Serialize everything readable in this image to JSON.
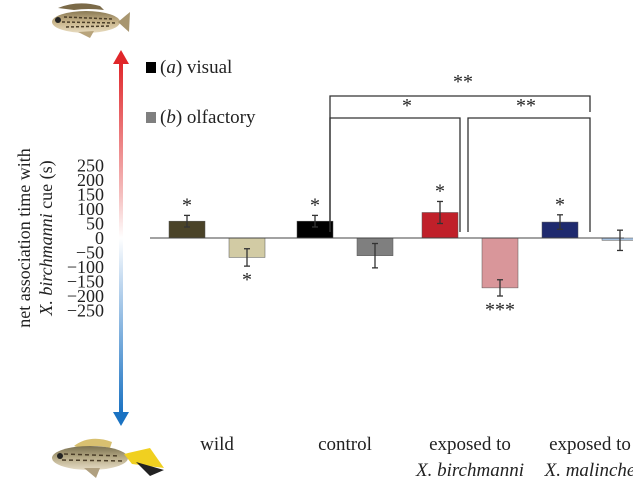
{
  "chart_data": {
    "type": "bar",
    "ylabel_line1": "net association time with",
    "ylabel_line2_italic": "X. birchmanni",
    "ylabel_line2_rest": " cue (s)",
    "ylim": [
      -250,
      250
    ],
    "yticks": [
      250,
      200,
      150,
      100,
      50,
      0,
      -50,
      -100,
      -150,
      -200,
      -250
    ],
    "categories": [
      {
        "line1": "wild",
        "line2": ""
      },
      {
        "line1": "control",
        "line2": ""
      },
      {
        "line1": "exposed to",
        "line2": "X. birchmanni"
      },
      {
        "line1": "exposed to",
        "line2": "X. malinche"
      }
    ],
    "legend": [
      {
        "letter": "a",
        "label": " visual"
      },
      {
        "letter": "b",
        "label": " olfactory"
      }
    ],
    "series": [
      {
        "name": "(a) visual",
        "values": [
          58,
          58,
          88,
          55
        ],
        "errors": [
          20,
          20,
          38,
          25
        ],
        "colors": [
          "#4a4328",
          "#000000",
          "#c0202a",
          "#1f2a6e"
        ],
        "annotations": [
          "*",
          "*",
          "*",
          "*"
        ]
      },
      {
        "name": "(b) olfactory",
        "values": [
          -67,
          -61,
          -172,
          -8
        ],
        "errors": [
          30,
          42,
          28,
          35
        ],
        "colors": [
          "#d2cba4",
          "#7f7f7f",
          "#d9969a",
          "#a6c1df"
        ],
        "annotations": [
          "*",
          "",
          "***",
          ""
        ]
      }
    ],
    "brackets": [
      {
        "label": "*",
        "from": "visual exposed to X. birchmanni",
        "to": "olfactory control"
      },
      {
        "label": "**",
        "from": "olfactory exposed to X. birchmanni",
        "to": "olfactory exposed to X. malinche"
      },
      {
        "label": "**",
        "from": "olfactory control",
        "to": "olfactory exposed to X. malinche"
      }
    ],
    "arrow_colors": {
      "top": "#e0262a",
      "bottom": "#1a72c2"
    },
    "fish_icons": [
      "birchmanni-fish-icon",
      "malinche-fish-icon"
    ]
  }
}
